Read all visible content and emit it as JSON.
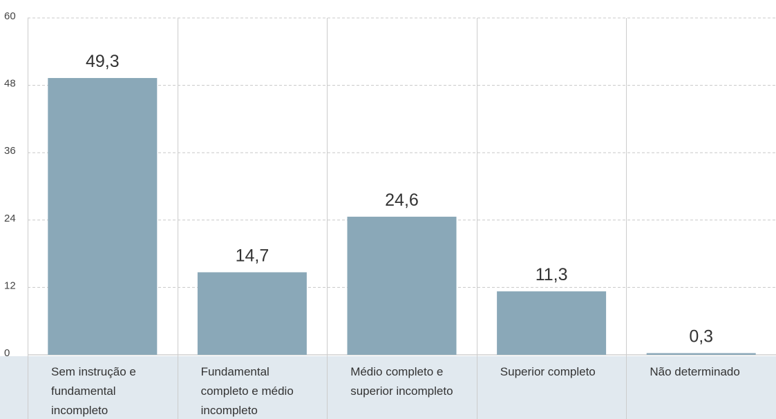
{
  "chart_data": {
    "type": "bar",
    "categories": [
      [
        "Sem instrução e",
        "fundamental",
        "incompleto"
      ],
      [
        "Fundamental",
        "completo e médio",
        "incompleto"
      ],
      [
        "Médio completo e",
        "superior incompleto"
      ],
      [
        "Superior completo"
      ],
      [
        "Não determinado"
      ]
    ],
    "values": [
      49.3,
      14.7,
      24.6,
      11.3,
      0.3
    ],
    "value_labels": [
      "49,3",
      "14,7",
      "24,6",
      "11,3",
      "0,3"
    ],
    "yticks": [
      0,
      12,
      24,
      36,
      48,
      60
    ],
    "ytick_labels": [
      "0",
      "12",
      "24",
      "36",
      "48",
      "60"
    ],
    "ylim": [
      0,
      60
    ],
    "title": "",
    "xlabel": "",
    "ylabel": "",
    "grid": true,
    "colors": {
      "bar": "#8aa8b8",
      "category_band": "#e1e9ef",
      "gridline": "#c8c8c8",
      "separator": "#cccccc"
    }
  }
}
